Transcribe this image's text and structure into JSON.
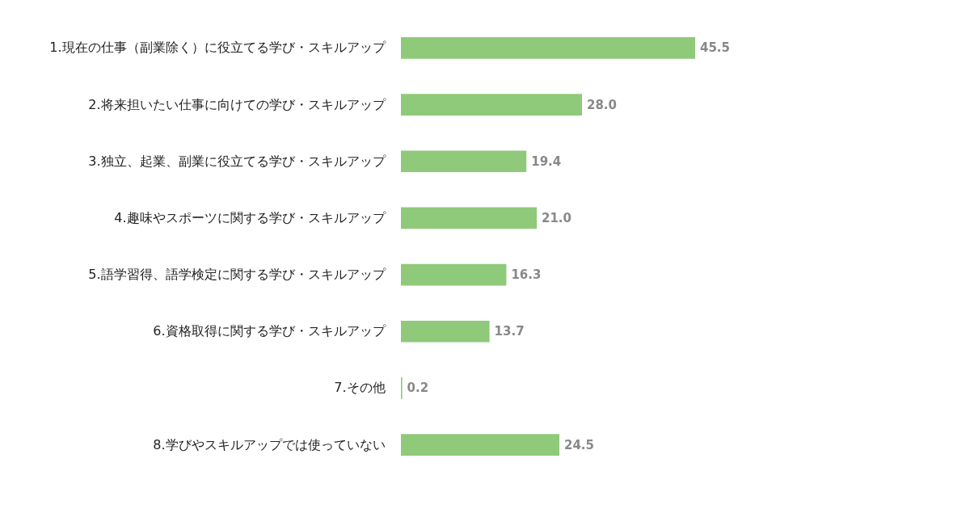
{
  "chart_data": {
    "type": "bar",
    "orientation": "horizontal",
    "data_labels": true,
    "categories": [
      "1.現在の仕事（副業除く）に役立てる学び・スキルアップ",
      "2.将来担いたい仕事に向けての学び・スキルアップ",
      "3.独立、起業、副業に役立てる学び・スキルアップ",
      "4.趣味やスポーツに関する学び・スキルアップ",
      "5.語学習得、語学検定に関する学び・スキルアップ",
      "6.資格取得に関する学び・スキルアップ",
      "7.その他",
      "8.学びやスキルアップでは使っていない"
    ],
    "values": [
      45.5,
      28.0,
      19.4,
      21.0,
      16.3,
      13.7,
      0.2,
      24.5
    ],
    "value_labels": [
      "45.5",
      "28.0",
      "19.4",
      "21.0",
      "16.3",
      "13.7",
      "0.2",
      "24.5"
    ],
    "color": "#8fc97a"
  }
}
